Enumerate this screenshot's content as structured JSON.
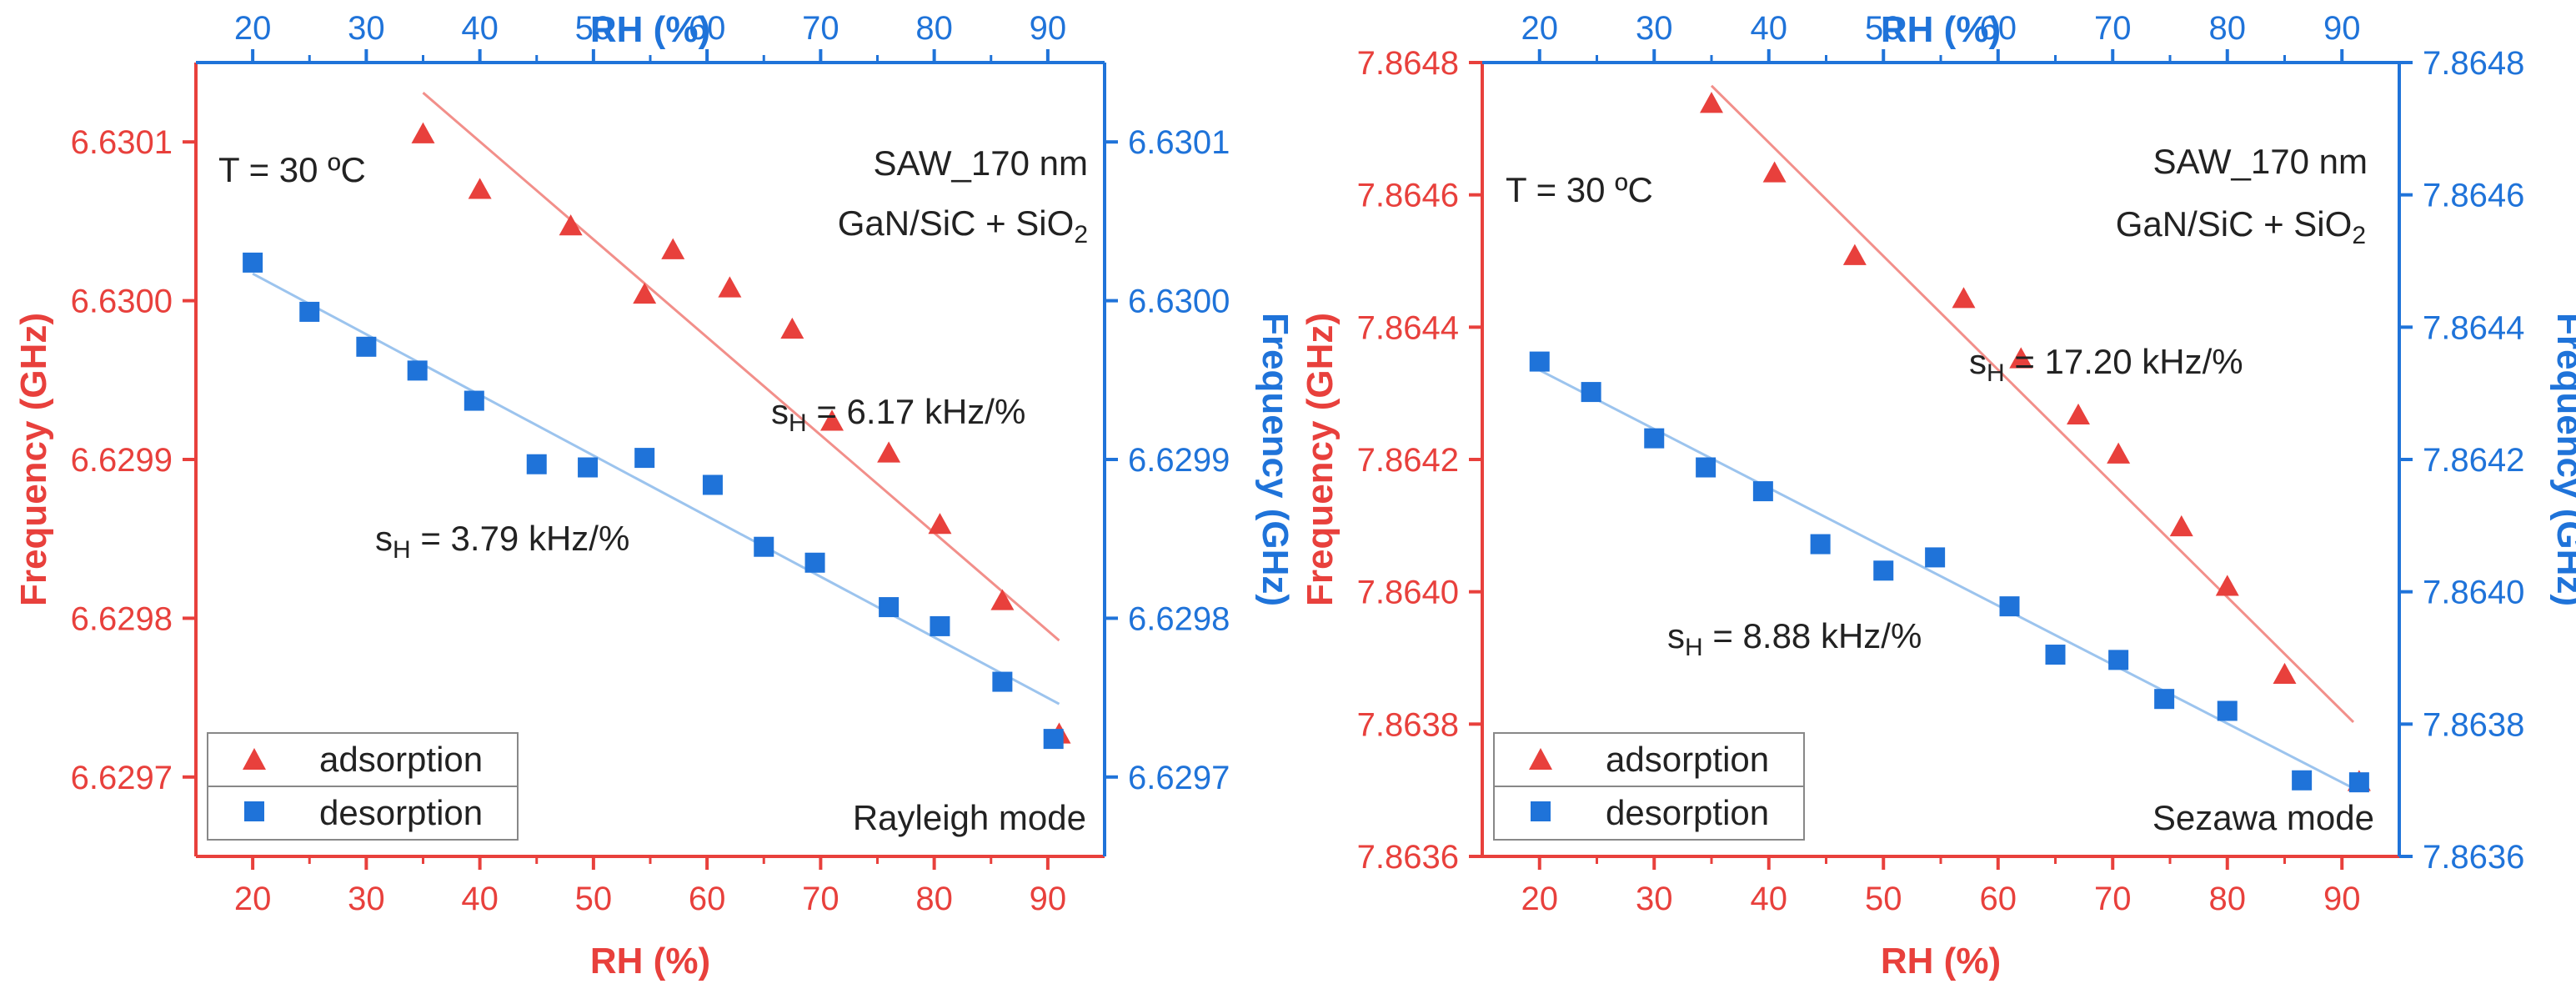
{
  "colors": {
    "adsorption": "#e8403c",
    "desorption": "#1f73d9",
    "adsorption_fit": "#f28f8a",
    "desorption_fit": "#9cc4ee"
  },
  "chart_data": [
    {
      "id": "rayleigh",
      "type": "scatter",
      "title": "Rayleigh mode",
      "xlabel": "RH (%)",
      "x2label": "RH (%)",
      "ylabel": "Frequency (GHz)",
      "y2label": "Frequency (GHz)",
      "xlim": [
        15,
        95
      ],
      "ylim": [
        6.62965,
        6.63015
      ],
      "xticks": [
        "20",
        "30",
        "40",
        "50",
        "60",
        "70",
        "80",
        "90"
      ],
      "yticks": [
        "6.6297",
        "6.6298",
        "6.6299",
        "6.6300",
        "6.6301"
      ],
      "ytick_values": [
        6.6297,
        6.6298,
        6.6299,
        6.63,
        6.6301
      ],
      "annotations": {
        "temperature": "T = 30 ºC",
        "device": "SAW_170 nm",
        "stack_prefix": "GaN/SiC + SiO",
        "stack_sub": "2",
        "slope_ads_prefix": "s",
        "slope_ads_sub": "H",
        "slope_ads_value": " = 6.17 kHz/%",
        "slope_des_prefix": "s",
        "slope_des_sub": "H",
        "slope_des_value": " = 3.79 kHz/%"
      },
      "legend": [
        "adsorption",
        "desorption"
      ],
      "series": [
        {
          "name": "adsorption",
          "marker": "triangle",
          "points": [
            [
              35,
              6.630105
            ],
            [
              40,
              6.63007
            ],
            [
              48,
              6.630047
            ],
            [
              54.5,
              6.630004
            ],
            [
              57,
              6.630032
            ],
            [
              62,
              6.630008
            ],
            [
              67.5,
              6.629982
            ],
            [
              71,
              6.629924
            ],
            [
              76,
              6.629904
            ],
            [
              80.5,
              6.629859
            ],
            [
              86,
              6.629811
            ],
            [
              91,
              6.629727
            ]
          ],
          "fit": [
            [
              35,
              6.630131
            ],
            [
              91,
              6.629786
            ]
          ]
        },
        {
          "name": "desorption",
          "marker": "square",
          "points": [
            [
              20,
              6.630024
            ],
            [
              25,
              6.629993
            ],
            [
              30,
              6.629971
            ],
            [
              34.5,
              6.629956
            ],
            [
              39.5,
              6.629937
            ],
            [
              45,
              6.629897
            ],
            [
              49.5,
              6.629895
            ],
            [
              54.5,
              6.629901
            ],
            [
              60.5,
              6.629884
            ],
            [
              65,
              6.629845
            ],
            [
              69.5,
              6.629835
            ],
            [
              76,
              6.629807
            ],
            [
              80.5,
              6.629795
            ],
            [
              86,
              6.62976
            ],
            [
              90.5,
              6.629724
            ]
          ],
          "fit": [
            [
              20,
              6.630017
            ],
            [
              91,
              6.629746
            ]
          ]
        }
      ]
    },
    {
      "id": "sezawa",
      "type": "scatter",
      "title": "Sezawa mode",
      "xlabel": "RH (%)",
      "x2label": "RH (%)",
      "ylabel": "Frequency (GHz)",
      "y2label": "Frequency (GHz)",
      "xlim": [
        15,
        95
      ],
      "ylim": [
        7.8636,
        7.8648
      ],
      "xticks": [
        "20",
        "30",
        "40",
        "50",
        "60",
        "70",
        "80",
        "90"
      ],
      "yticks": [
        "7.8636",
        "7.8638",
        "7.8640",
        "7.8642",
        "7.8644",
        "7.8646",
        "7.8648"
      ],
      "ytick_values": [
        7.8636,
        7.8638,
        7.864,
        7.8642,
        7.8644,
        7.8646,
        7.8648
      ],
      "annotations": {
        "temperature": "T = 30 ºC",
        "device": "SAW_170 nm",
        "stack_prefix": "GaN/SiC + SiO",
        "stack_sub": "2",
        "slope_ads_prefix": "s",
        "slope_ads_sub": "H",
        "slope_ads_value": " = 17.20 kHz/%",
        "slope_des_prefix": "s",
        "slope_des_sub": "H",
        "slope_des_value": " = 8.88 kHz/%"
      },
      "legend": [
        "adsorption",
        "desorption"
      ],
      "series": [
        {
          "name": "adsorption",
          "marker": "triangle",
          "points": [
            [
              35,
              7.864738
            ],
            [
              40.5,
              7.864633
            ],
            [
              47.5,
              7.864508
            ],
            [
              57,
              7.864443
            ],
            [
              62,
              7.864352
            ],
            [
              67,
              7.864267
            ],
            [
              70.5,
              7.864208
            ],
            [
              76,
              7.864098
            ],
            [
              80,
              7.864008
            ],
            [
              85,
              7.863875
            ],
            [
              91.5,
              7.863713
            ]
          ],
          "fit": [
            [
              35,
              7.864765
            ],
            [
              91,
              7.863803
            ]
          ]
        },
        {
          "name": "desorption",
          "marker": "square",
          "points": [
            [
              20,
              7.864348
            ],
            [
              24.5,
              7.864302
            ],
            [
              30,
              7.864232
            ],
            [
              34.5,
              7.864188
            ],
            [
              39.5,
              7.864152
            ],
            [
              44.5,
              7.864072
            ],
            [
              50,
              7.864032
            ],
            [
              54.5,
              7.864052
            ],
            [
              61,
              7.863978
            ],
            [
              65,
              7.863905
            ],
            [
              70.5,
              7.863897
            ],
            [
              74.5,
              7.863838
            ],
            [
              80,
              7.86382
            ],
            [
              86.5,
              7.863715
            ],
            [
              91.5,
              7.863712
            ]
          ],
          "fit": [
            [
              20,
              7.864335
            ],
            [
              91,
              7.863703
            ]
          ]
        }
      ]
    }
  ]
}
